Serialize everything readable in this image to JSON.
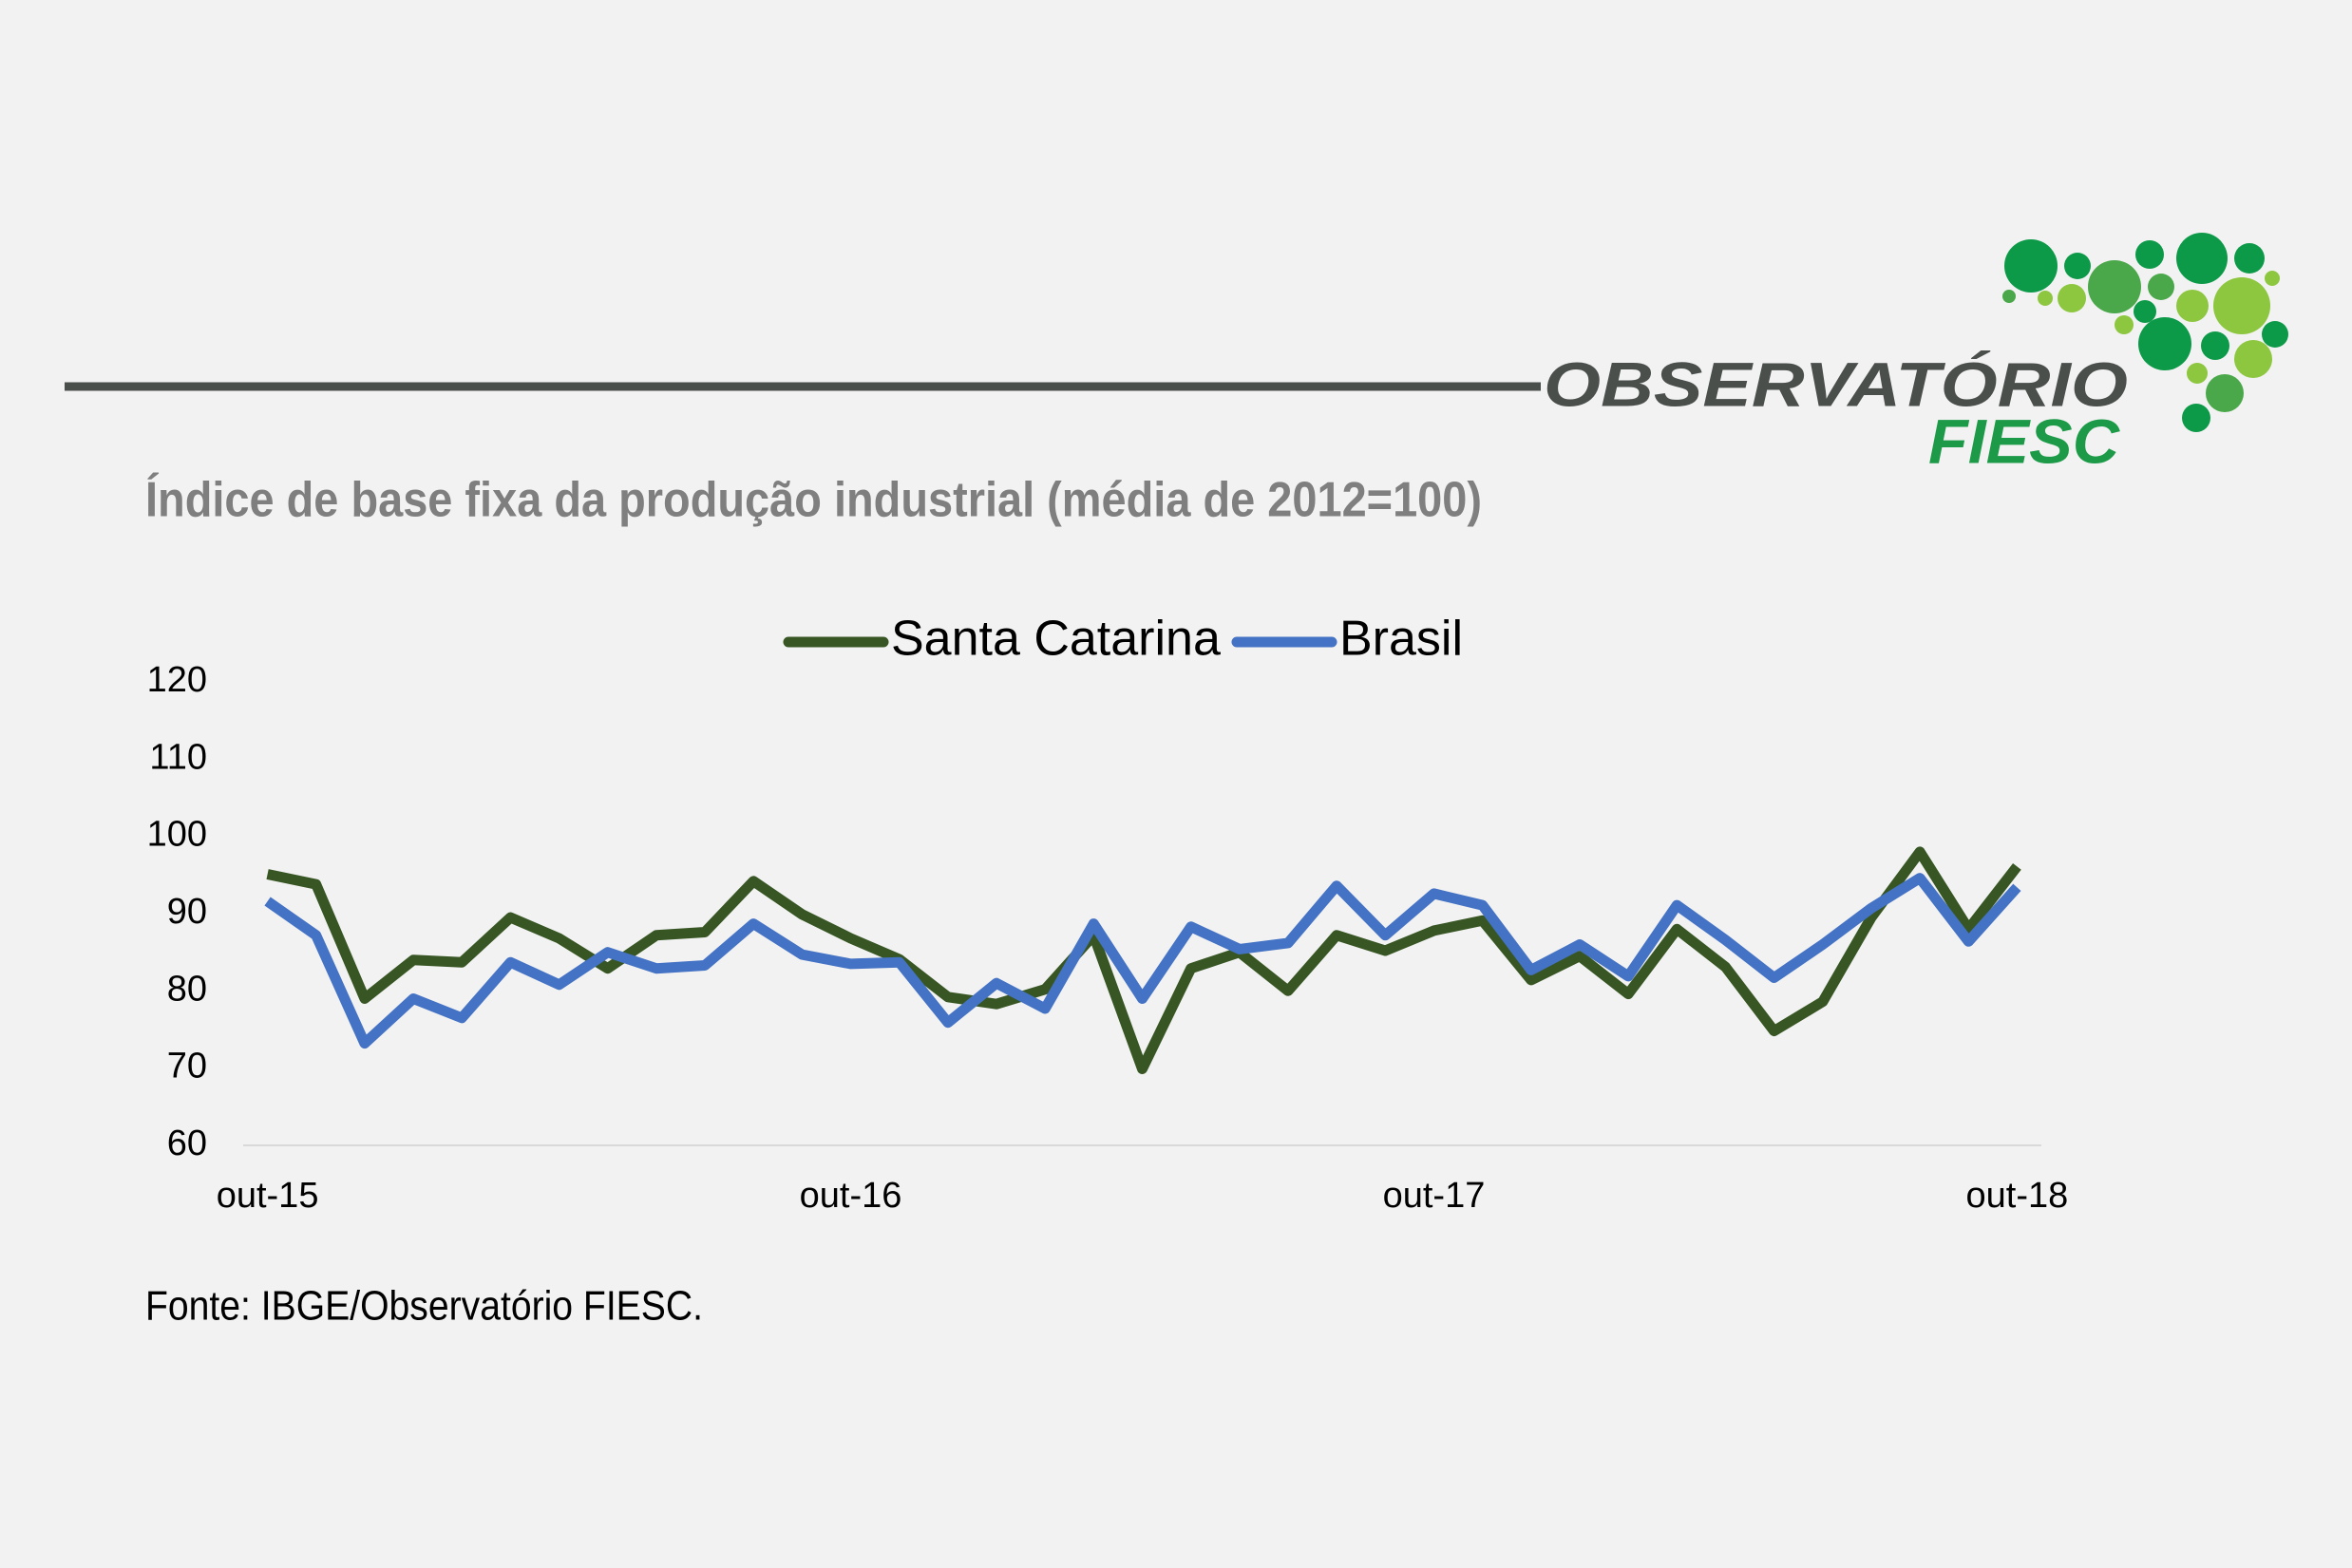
{
  "logo": {
    "line1": "OBSERVATÓRIO",
    "line2": "FIESC"
  },
  "chart_data": {
    "type": "line",
    "title": "Índice de base fixa da produção industrial (média de 2012=100)",
    "source": "Fonte: IBGE/Observatório FIESC.",
    "categories": [
      "out-15",
      null,
      null,
      null,
      null,
      null,
      null,
      null,
      null,
      null,
      null,
      null,
      "out-16",
      null,
      null,
      null,
      null,
      null,
      null,
      null,
      null,
      null,
      null,
      null,
      "out-17",
      null,
      null,
      null,
      null,
      null,
      null,
      null,
      null,
      null,
      null,
      null,
      "out-18"
    ],
    "series": [
      {
        "name": "Santa Catarina",
        "color": "#375623",
        "values": [
          95.1,
          93.8,
          79,
          84,
          83.7,
          89.5,
          86.8,
          82.9,
          87.2,
          87.6,
          94.2,
          89.9,
          86.8,
          84.1,
          79.2,
          78.3,
          80.2,
          87.2,
          69.9,
          82.9,
          85,
          80,
          87.2,
          85.2,
          87.8,
          89.1,
          81.4,
          84.5,
          79.6,
          88,
          83.1,
          74.8,
          78.6,
          89.5,
          98,
          88,
          96.1
        ]
      },
      {
        "name": "Brasil",
        "color": "#4472c4",
        "values": [
          91.6,
          87.2,
          73.2,
          79,
          76.5,
          83.7,
          80.8,
          85,
          82.9,
          83.3,
          88.7,
          84.7,
          83.5,
          83.7,
          75.9,
          81,
          77.7,
          88.7,
          79,
          88.3,
          85.4,
          86.2,
          93.6,
          87.2,
          92.6,
          91.1,
          82.7,
          86,
          81.9,
          91.1,
          86.6,
          81.7,
          86,
          90.7,
          94.6,
          86.4,
          93.4
        ]
      }
    ],
    "ylim": [
      60,
      120
    ],
    "yticks": [
      60,
      70,
      80,
      90,
      100,
      110,
      120
    ],
    "grid": false,
    "legend": "top"
  }
}
